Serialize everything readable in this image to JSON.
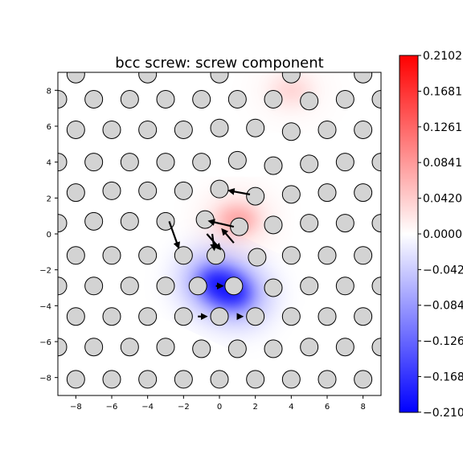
{
  "chart_data": {
    "type": "heatmap",
    "title": "bcc screw: screw component",
    "xlabel": "",
    "ylabel": "",
    "xlim": [
      -9,
      9
    ],
    "ylim": [
      -9,
      9
    ],
    "xticks": [
      -8,
      -6,
      -4,
      -2,
      0,
      2,
      4,
      6,
      8
    ],
    "yticks": [
      -8,
      -6,
      -4,
      -2,
      0,
      2,
      4,
      6,
      8
    ],
    "colorbar": {
      "min": -0.2102,
      "max": 0.2102,
      "colormap": "bwr",
      "ticks": [
        0.2102,
        0.1681,
        0.1261,
        0.0841,
        0.042,
        0.0,
        -0.042,
        -0.084,
        -0.126,
        -0.168,
        -0.21
      ],
      "tick_labels": [
        "0.2102",
        "0.1681",
        "0.1261",
        "0.0841",
        "0.0420",
        "0.0000",
        "−0.042",
        "−0.084",
        "−0.126",
        "−0.168",
        "−0.210"
      ]
    },
    "field_extrema": [
      {
        "x": 0.3,
        "y": -3.0,
        "value": -0.21
      },
      {
        "x": 1.0,
        "y": 0.8,
        "value": 0.07
      },
      {
        "x": 4.0,
        "y": 8.0,
        "value": 0.03
      }
    ],
    "atoms": [
      [
        -8,
        8.9
      ],
      [
        -4,
        8.9
      ],
      [
        0,
        8.9
      ],
      [
        4,
        8.9
      ],
      [
        8,
        8.9
      ],
      [
        -9,
        7.5
      ],
      [
        -7,
        7.5
      ],
      [
        -5,
        7.5
      ],
      [
        -3,
        7.5
      ],
      [
        -1,
        7.5
      ],
      [
        1,
        7.5
      ],
      [
        3,
        7.5
      ],
      [
        5,
        7.4
      ],
      [
        7,
        7.5
      ],
      [
        9,
        7.5
      ],
      [
        -8,
        5.8
      ],
      [
        -6,
        5.8
      ],
      [
        -4,
        5.8
      ],
      [
        -2,
        5.8
      ],
      [
        0,
        5.9
      ],
      [
        2,
        5.9
      ],
      [
        4,
        5.7
      ],
      [
        6,
        5.8
      ],
      [
        8,
        5.8
      ],
      [
        -9,
        4.0
      ],
      [
        -7,
        4.0
      ],
      [
        -5,
        4.0
      ],
      [
        -3,
        4.0
      ],
      [
        -1,
        4.0
      ],
      [
        1,
        4.1
      ],
      [
        3,
        3.8
      ],
      [
        5,
        3.9
      ],
      [
        7,
        4.0
      ],
      [
        9,
        4.0
      ],
      [
        -8,
        2.3
      ],
      [
        -6,
        2.4
      ],
      [
        -4,
        2.4
      ],
      [
        -2,
        2.4
      ],
      [
        0,
        2.5
      ],
      [
        2,
        2.1
      ],
      [
        4,
        2.2
      ],
      [
        6,
        2.3
      ],
      [
        8,
        2.3
      ],
      [
        -9,
        0.6
      ],
      [
        -7,
        0.7
      ],
      [
        -5,
        0.7
      ],
      [
        -3,
        0.7
      ],
      [
        -0.8,
        0.8
      ],
      [
        1.1,
        0.4
      ],
      [
        3,
        0.5
      ],
      [
        5,
        0.6
      ],
      [
        7,
        0.6
      ],
      [
        9,
        0.6
      ],
      [
        -8,
        -1.2
      ],
      [
        -6,
        -1.2
      ],
      [
        -4,
        -1.2
      ],
      [
        -2,
        -1.2
      ],
      [
        -0.2,
        -1.2
      ],
      [
        2.1,
        -1.3
      ],
      [
        4,
        -1.2
      ],
      [
        6,
        -1.2
      ],
      [
        8,
        -1.2
      ],
      [
        -9,
        -2.9
      ],
      [
        -7,
        -2.9
      ],
      [
        -5,
        -2.9
      ],
      [
        -3,
        -2.9
      ],
      [
        -1.2,
        -2.9
      ],
      [
        0.8,
        -2.9
      ],
      [
        3,
        -3.0
      ],
      [
        5,
        -2.9
      ],
      [
        7,
        -2.9
      ],
      [
        9,
        -2.9
      ],
      [
        -8,
        -4.6
      ],
      [
        -6,
        -4.6
      ],
      [
        -4,
        -4.6
      ],
      [
        -2,
        -4.6
      ],
      [
        0,
        -4.6
      ],
      [
        2,
        -4.6
      ],
      [
        4,
        -4.6
      ],
      [
        6,
        -4.6
      ],
      [
        8,
        -4.6
      ],
      [
        -9,
        -6.3
      ],
      [
        -7,
        -6.3
      ],
      [
        -5,
        -6.3
      ],
      [
        -3,
        -6.3
      ],
      [
        -1,
        -6.4
      ],
      [
        1,
        -6.4
      ],
      [
        3,
        -6.4
      ],
      [
        5,
        -6.3
      ],
      [
        7,
        -6.3
      ],
      [
        9,
        -6.3
      ],
      [
        -8,
        -8.1
      ],
      [
        -6,
        -8.1
      ],
      [
        -4,
        -8.1
      ],
      [
        -2,
        -8.1
      ],
      [
        0,
        -8.1
      ],
      [
        2,
        -8.1
      ],
      [
        4,
        -8.1
      ],
      [
        6,
        -8.1
      ],
      [
        8,
        -8.1
      ]
    ],
    "arrows": [
      [
        -2.8,
        0.7,
        -2.3,
        -0.7
      ],
      [
        -0.4,
        0.0,
        -0.3,
        -0.8
      ],
      [
        0.8,
        -0.5,
        0.2,
        0.2
      ],
      [
        -0.7,
        0.0,
        0.0,
        -0.8
      ],
      [
        0.8,
        0.4,
        -0.5,
        0.7
      ],
      [
        1.7,
        2.2,
        0.6,
        2.4
      ],
      [
        -0.2,
        -2.9,
        0.1,
        -2.9
      ],
      [
        -1.2,
        -4.6,
        -0.8,
        -4.6
      ],
      [
        1.0,
        -4.6,
        1.2,
        -4.6
      ]
    ]
  }
}
